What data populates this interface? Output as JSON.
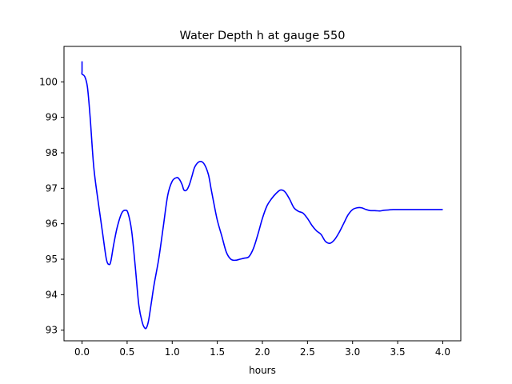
{
  "chart_data": {
    "type": "line",
    "title": "Water Depth h at gauge 550",
    "xlabel": "hours",
    "ylabel": "",
    "xlim": [
      -0.2,
      4.2
    ],
    "ylim": [
      92.7,
      101.0
    ],
    "xticks": [
      0.0,
      0.5,
      1.0,
      1.5,
      2.0,
      2.5,
      3.0,
      3.5,
      4.0
    ],
    "xtick_labels": [
      "0.0",
      "0.5",
      "1.0",
      "1.5",
      "2.0",
      "2.5",
      "3.0",
      "3.5",
      "4.0"
    ],
    "yticks": [
      93,
      94,
      95,
      96,
      97,
      98,
      99,
      100
    ],
    "ytick_labels": [
      "93",
      "94",
      "95",
      "96",
      "97",
      "98",
      "99",
      "100"
    ],
    "grid": false,
    "series": [
      {
        "color": "#0000ff",
        "x": [
          0.0,
          0.0,
          0.0,
          0.03,
          0.06,
          0.09,
          0.13,
          0.18,
          0.23,
          0.27,
          0.3,
          0.32,
          0.35,
          0.39,
          0.44,
          0.48,
          0.51,
          0.55,
          0.59,
          0.63,
          0.67,
          0.7,
          0.72,
          0.74,
          0.77,
          0.8,
          0.85,
          0.9,
          0.95,
          1.0,
          1.05,
          1.08,
          1.11,
          1.13,
          1.16,
          1.19,
          1.22,
          1.25,
          1.3,
          1.35,
          1.4,
          1.43,
          1.46,
          1.5,
          1.55,
          1.6,
          1.65,
          1.7,
          1.75,
          1.8,
          1.85,
          1.9,
          1.95,
          2.0,
          2.05,
          2.1,
          2.15,
          2.2,
          2.25,
          2.3,
          2.35,
          2.4,
          2.45,
          2.5,
          2.55,
          2.6,
          2.65,
          2.7,
          2.75,
          2.8,
          2.85,
          2.9,
          2.95,
          3.0,
          3.05,
          3.1,
          3.15,
          3.2,
          3.25,
          3.3,
          3.35,
          3.4,
          3.45,
          3.5,
          3.55,
          3.6,
          3.65,
          3.7,
          3.75,
          3.8,
          3.85,
          3.9,
          3.95,
          4.0
        ],
        "y": [
          100.58,
          100.3,
          100.22,
          100.15,
          99.85,
          99.0,
          97.6,
          96.6,
          95.7,
          95.0,
          94.85,
          94.95,
          95.4,
          95.9,
          96.3,
          96.38,
          96.3,
          95.8,
          94.8,
          93.7,
          93.2,
          93.05,
          93.1,
          93.3,
          93.8,
          94.3,
          95.0,
          95.9,
          96.8,
          97.2,
          97.3,
          97.25,
          97.1,
          96.95,
          96.95,
          97.1,
          97.35,
          97.6,
          97.75,
          97.7,
          97.4,
          97.0,
          96.6,
          96.1,
          95.65,
          95.2,
          95.0,
          94.97,
          95.0,
          95.03,
          95.07,
          95.3,
          95.7,
          96.15,
          96.5,
          96.7,
          96.85,
          96.95,
          96.9,
          96.7,
          96.45,
          96.35,
          96.3,
          96.15,
          95.95,
          95.8,
          95.7,
          95.5,
          95.45,
          95.55,
          95.75,
          96.0,
          96.25,
          96.4,
          96.45,
          96.45,
          96.4,
          96.37,
          96.37,
          96.36,
          96.38,
          96.39,
          96.4,
          96.4,
          96.4,
          96.4,
          96.4,
          96.4,
          96.4,
          96.4,
          96.4,
          96.4,
          96.4,
          96.4
        ]
      }
    ]
  }
}
